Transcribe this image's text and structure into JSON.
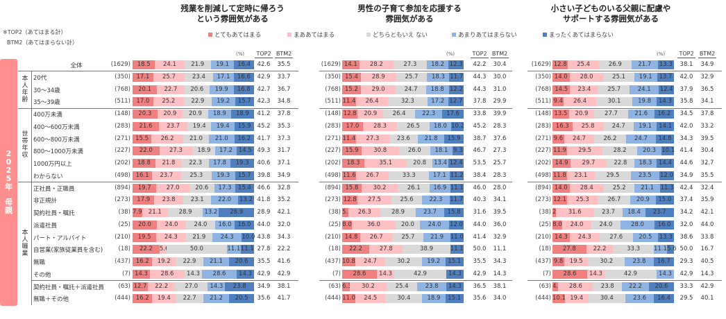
{
  "notes": [
    "※TOP2（あてはまる計）",
    "BTM2（あてはまらない計）"
  ],
  "band_label": [
    "2",
    "0",
    "2",
    "5",
    "年",
    "",
    "母",
    "親"
  ],
  "band_label_text": "2025年 母親",
  "legend": [
    {
      "label": "とてもあてはまる",
      "color": "#f08080"
    },
    {
      "label": "まああてはまる",
      "color": "#ffc0c4"
    },
    {
      "label": "どちらともいえ ない",
      "color": "#d9d9d9"
    },
    {
      "label": "あまりあてはまらない",
      "color": "#8fb4e3"
    },
    {
      "label": "まったくあてはまらない",
      "color": "#4f7fbf"
    }
  ],
  "headers": {
    "pct_unit": "(%)",
    "top2": "TOP2",
    "btm2": "BTM2"
  },
  "groups": [
    {
      "label": "本人年齢",
      "chars": [
        "本",
        "人",
        "年",
        "齢"
      ]
    },
    {
      "label": "世帯年収",
      "chars": [
        "世",
        "帯",
        "年",
        "収"
      ]
    },
    {
      "label": "本人職業",
      "chars": [
        "本",
        "人",
        "職",
        "業"
      ]
    }
  ],
  "rows": [
    {
      "label": "全体",
      "n": "(1629)"
    },
    {
      "label": "20代",
      "n": "(350)"
    },
    {
      "label": "30～34歳",
      "n": "(768)"
    },
    {
      "label": "35～39歳",
      "n": "(511)"
    },
    {
      "label": "400万未満",
      "n": "(148)"
    },
    {
      "label": "400～600万未満",
      "n": "(283)"
    },
    {
      "label": "600～800万未満",
      "n": "(271)"
    },
    {
      "label": "800～1000万未満",
      "n": "(227)"
    },
    {
      "label": "1000万円以上",
      "n": "(202)"
    },
    {
      "label": "わからない",
      "n": "(498)"
    },
    {
      "label": "正社員・正職員",
      "n": "(894)"
    },
    {
      "label": "非正規計",
      "n": "(273)"
    },
    {
      "label": "契約社員・嘱託",
      "n": "(38)"
    },
    {
      "label": "派遣社員",
      "n": "(25)"
    },
    {
      "label": "パート・アルバイト",
      "n": "(210)"
    },
    {
      "label": "自営業(家族従業員を含む)",
      "n": "(18)"
    },
    {
      "label": "無職",
      "n": "(437)"
    },
    {
      "label": "その他",
      "n": "(7)"
    },
    {
      "label": "契約社員・嘱託＋派遣社員",
      "n": "(63)"
    },
    {
      "label": "無職＋その他",
      "n": "(444)"
    }
  ],
  "chart_data": [
    {
      "type": "bar",
      "orientation": "horizontal-stacked-100",
      "title": "残業を削減して定時に帰ろう\nという雰囲気がある",
      "title_lines": [
        "残業を削減して定時に帰ろう",
        "という雰囲気がある"
      ],
      "unit": "%",
      "series_names": [
        "とてもあてはまる",
        "まああてはまる",
        "どちらともいえ ない",
        "あまりあてはまらない",
        "まったくあてはまらない"
      ],
      "values": [
        [
          18.5,
          24.1,
          21.9,
          19.1,
          16.4
        ],
        [
          17.1,
          25.7,
          23.4,
          17.1,
          16.6
        ],
        [
          20.1,
          22.7,
          20.6,
          19.9,
          16.8
        ],
        [
          17.0,
          25.2,
          22.9,
          19.2,
          15.7
        ],
        [
          20.3,
          20.9,
          20.9,
          18.9,
          18.9
        ],
        [
          21.6,
          23.7,
          19.4,
          19.4,
          15.9
        ],
        [
          15.5,
          26.2,
          21.0,
          21.0,
          16.2
        ],
        [
          22.0,
          27.3,
          18.9,
          17.2,
          14.5
        ],
        [
          18.8,
          21.8,
          22.3,
          17.8,
          19.3
        ],
        [
          16.1,
          23.7,
          25.3,
          19.3,
          15.7
        ],
        [
          19.7,
          27.0,
          20.6,
          17.3,
          15.4
        ],
        [
          17.9,
          23.8,
          23.1,
          22.0,
          13.2
        ],
        [
          7.9,
          21.1,
          28.9,
          13.2,
          28.9
        ],
        [
          20.0,
          24.0,
          24.0,
          16.0,
          16.0
        ],
        [
          19.5,
          24.3,
          21.9,
          24.3,
          10.0
        ],
        [
          22.2,
          5.6,
          50.0,
          11.1,
          11.1
        ],
        [
          16.2,
          19.2,
          22.9,
          21.1,
          20.6
        ],
        [
          14.3,
          28.6,
          14.3,
          28.6,
          14.3
        ],
        [
          12.7,
          22.2,
          27.0,
          14.3,
          23.8
        ],
        [
          16.2,
          19.4,
          22.7,
          21.2,
          20.5
        ]
      ],
      "top2": [
        42.6,
        42.9,
        42.7,
        42.3,
        41.2,
        45.2,
        41.7,
        49.3,
        40.6,
        39.8,
        46.6,
        41.8,
        28.9,
        44.0,
        43.8,
        27.8,
        35.5,
        42.9,
        34.9,
        35.6
      ],
      "btm2": [
        35.5,
        33.7,
        36.7,
        34.8,
        37.8,
        35.3,
        37.3,
        31.7,
        37.1,
        34.9,
        32.8,
        35.2,
        42.1,
        32.0,
        34.3,
        22.2,
        41.6,
        42.9,
        38.1,
        41.7
      ],
      "xlim": [
        0,
        100
      ]
    },
    {
      "type": "bar",
      "orientation": "horizontal-stacked-100",
      "title": "男性の子育て参加を応援する\n雰囲気がある",
      "title_lines": [
        "男性の子育て参加を応援する",
        "雰囲気がある"
      ],
      "unit": "%",
      "series_names": [
        "とてもあてはまる",
        "まああてはまる",
        "どちらともいえ ない",
        "あまりあてはまらない",
        "まったくあてはまらない"
      ],
      "values": [
        [
          14.1,
          28.2,
          27.3,
          18.2,
          12.3
        ],
        [
          15.4,
          28.9,
          25.7,
          18.3,
          11.7
        ],
        [
          15.2,
          29.0,
          24.7,
          18.8,
          12.2
        ],
        [
          11.4,
          26.4,
          32.3,
          17.2,
          12.7
        ],
        [
          12.8,
          20.9,
          26.4,
          22.3,
          17.6
        ],
        [
          17.0,
          28.3,
          26.5,
          18.0,
          10.2
        ],
        [
          11.4,
          27.3,
          23.6,
          21.8,
          15.9
        ],
        [
          15.9,
          30.8,
          26.0,
          18.1,
          9.3
        ],
        [
          18.3,
          35.1,
          20.8,
          13.4,
          12.4
        ],
        [
          11.6,
          26.7,
          33.3,
          17.1,
          11.2
        ],
        [
          15.8,
          30.2,
          26.1,
          16.9,
          11.1
        ],
        [
          12.8,
          27.5,
          25.6,
          22.3,
          11.7
        ],
        [
          5.3,
          26.3,
          28.9,
          23.7,
          15.8
        ],
        [
          8.0,
          36.0,
          20.0,
          24.0,
          12.0
        ],
        [
          14.8,
          26.7,
          25.7,
          21.9,
          11.0
        ],
        [
          22.2,
          27.8,
          38.9,
          0.0,
          11.1
        ],
        [
          10.8,
          24.7,
          30.2,
          19.2,
          15.1
        ],
        [
          28.6,
          14.3,
          42.9,
          0.0,
          14.3
        ],
        [
          6.3,
          30.2,
          25.4,
          23.8,
          14.3
        ],
        [
          11.0,
          24.5,
          30.4,
          18.9,
          15.1
        ]
      ],
      "top2": [
        42.2,
        44.3,
        44.3,
        37.8,
        33.8,
        45.2,
        38.7,
        46.7,
        53.5,
        38.4,
        46.0,
        40.3,
        31.6,
        44.0,
        41.4,
        50.0,
        35.5,
        42.9,
        36.5,
        35.6
      ],
      "btm2": [
        30.4,
        30.0,
        31.0,
        29.9,
        39.9,
        28.3,
        37.6,
        27.3,
        25.7,
        28.3,
        28.0,
        34.1,
        39.5,
        36.0,
        32.9,
        11.1,
        34.3,
        14.3,
        38.1,
        34.0
      ],
      "xlim": [
        0,
        100
      ]
    },
    {
      "type": "bar",
      "orientation": "horizontal-stacked-100",
      "title": "小さい子どものいる父親に配慮や\nサポートする雰囲気がある",
      "title_lines": [
        "小さい子どものいる父親に配慮や",
        "サポートする雰囲気がある"
      ],
      "unit": "%",
      "series_names": [
        "とてもあてはまる",
        "まああてはまる",
        "どちらともいえ ない",
        "あまりあてはまらない",
        "まったくあてはまらない"
      ],
      "values": [
        [
          12.8,
          25.4,
          26.9,
          21.7,
          13.3
        ],
        [
          14.0,
          28.0,
          25.1,
          19.1,
          13.7
        ],
        [
          14.5,
          23.4,
          25.7,
          24.1,
          12.4
        ],
        [
          9.4,
          26.4,
          30.1,
          19.8,
          14.3
        ],
        [
          13.5,
          20.9,
          27.7,
          21.6,
          16.2
        ],
        [
          16.3,
          25.8,
          24.7,
          19.1,
          14.1
        ],
        [
          9.6,
          24.7,
          26.2,
          24.7,
          14.8
        ],
        [
          11.9,
          29.5,
          28.2,
          20.3,
          10.1
        ],
        [
          14.9,
          29.7,
          22.8,
          18.3,
          14.4
        ],
        [
          11.8,
          23.1,
          29.5,
          23.5,
          12.0
        ],
        [
          14.0,
          28.4,
          25.2,
          21.1,
          11.3
        ],
        [
          12.1,
          25.3,
          26.7,
          20.9,
          15.0
        ],
        [
          2.6,
          31.6,
          23.7,
          18.4,
          23.7
        ],
        [
          8.0,
          24.0,
          24.0,
          28.0,
          16.0
        ],
        [
          14.3,
          24.3,
          27.6,
          20.5,
          13.3
        ],
        [
          27.8,
          22.2,
          33.3,
          11.1,
          5.6
        ],
        [
          9.8,
          19.5,
          30.2,
          23.8,
          16.7
        ],
        [
          28.6,
          14.3,
          42.9,
          14.3,
          0.0
        ],
        [
          4.8,
          28.6,
          23.8,
          22.2,
          20.6
        ],
        [
          10.1,
          19.4,
          30.4,
          23.6,
          16.4
        ]
      ],
      "top2": [
        38.1,
        42.0,
        37.9,
        35.8,
        34.5,
        42.0,
        34.3,
        41.4,
        44.6,
        34.9,
        42.4,
        37.4,
        34.2,
        32.0,
        38.6,
        50.0,
        29.3,
        42.9,
        33.3,
        29.5
      ],
      "btm2": [
        34.9,
        32.9,
        36.5,
        34.1,
        37.8,
        33.2,
        39.5,
        30.4,
        32.7,
        35.5,
        32.4,
        35.9,
        42.1,
        44.0,
        33.8,
        16.7,
        40.5,
        14.3,
        42.9,
        40.1
      ],
      "xlim": [
        0,
        100
      ]
    }
  ]
}
